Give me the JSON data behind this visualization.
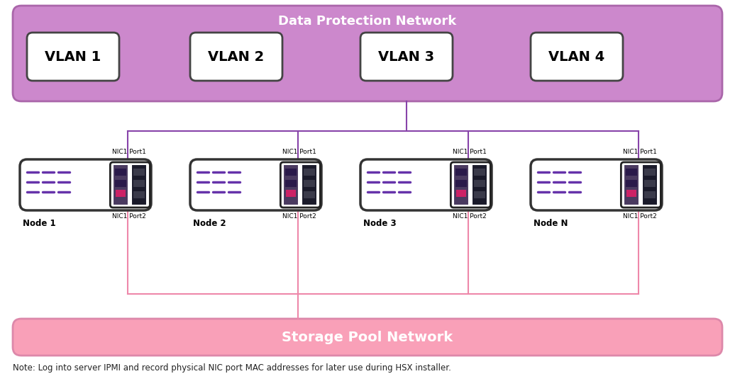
{
  "title": "Data Protection Network",
  "storage_title": "Storage Pool Network",
  "note": "Note: Log into server IPMI and record physical NIC port MAC addresses for later use during HSX installer.",
  "vlan_labels": [
    "VLAN 1",
    "VLAN 2",
    "VLAN 3",
    "VLAN 4"
  ],
  "node_labels": [
    "Node 1",
    "Node 2",
    "Node 3",
    "Node N"
  ],
  "dpn_bg": "#cc88cc",
  "dpn_border": "#aa66aa",
  "dpn_title_color": "#ffffff",
  "vlan_box_bg": "#ffffff",
  "vlan_box_border": "#444444",
  "vlan_text_color": "#000000",
  "spn_bg": "#f9a0b8",
  "spn_border": "#dd88aa",
  "spn_title_color": "#ffffff",
  "node_box_bg": "#ffffff",
  "node_box_border": "#333333",
  "purple_line": "#8844aa",
  "pink_line": "#ee88aa",
  "nic_stripe_color": "#6633aa",
  "note_color": "#222222",
  "background_color": "#ffffff"
}
